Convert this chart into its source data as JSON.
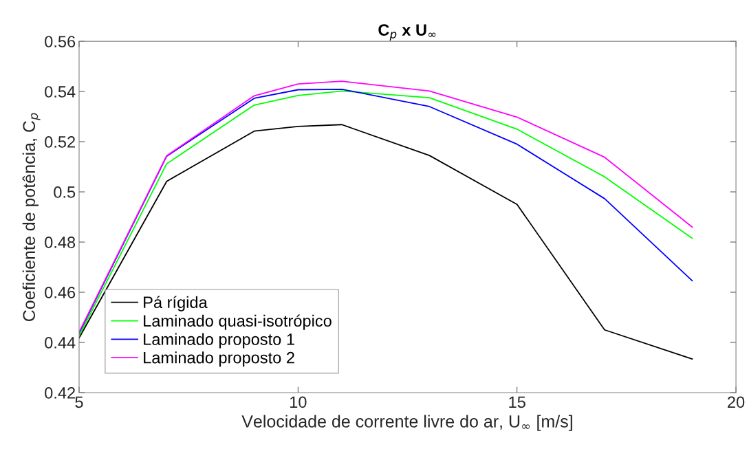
{
  "chart_data": {
    "type": "line",
    "title": "C$_{p}$ x U$_{∞}$",
    "xlabel": "Velocidade de corrente livre do ar, U$_{∞}$ [m/s]",
    "ylabel": "Coeficiente de potência, C$_{p}$",
    "x": [
      5,
      7,
      9,
      10,
      11,
      13,
      15,
      17,
      19
    ],
    "series": [
      {
        "name": "Pá rígida",
        "color": "#000000",
        "values": [
          0.4418,
          0.5042,
          0.5242,
          0.5261,
          0.5268,
          0.5145,
          0.495,
          0.445,
          0.4334
        ]
      },
      {
        "name": "Laminado quasi-isotrópico",
        "color": "#00ff00",
        "values": [
          0.4426,
          0.5112,
          0.5346,
          0.5384,
          0.5402,
          0.5375,
          0.525,
          0.506,
          0.4815
        ]
      },
      {
        "name": "Laminado proposto 1",
        "color": "#0000ff",
        "values": [
          0.4437,
          0.5142,
          0.5373,
          0.5407,
          0.5409,
          0.534,
          0.519,
          0.4973,
          0.4646
        ]
      },
      {
        "name": "Laminado proposto 2",
        "color": "#ff00ff",
        "values": [
          0.4441,
          0.5144,
          0.5383,
          0.543,
          0.5441,
          0.5402,
          0.5298,
          0.5138,
          0.486
        ]
      }
    ],
    "xlim": [
      5,
      20
    ],
    "xticks": [
      5,
      10,
      15,
      20
    ],
    "ylim": [
      0.42,
      0.56
    ],
    "yticks": [
      0.42,
      0.44,
      0.46,
      0.48,
      0.5,
      0.52,
      0.54,
      0.56
    ],
    "grid": false,
    "legend": "bottom left",
    "marker": "none",
    "line_style": "solid"
  }
}
